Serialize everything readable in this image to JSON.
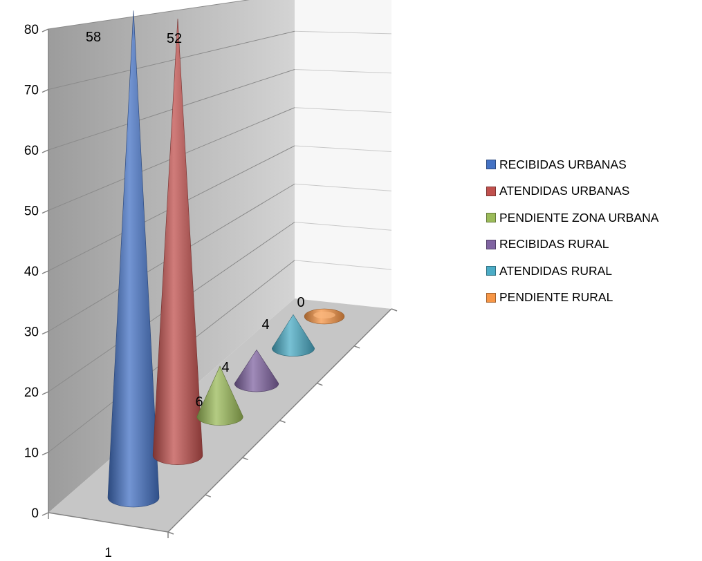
{
  "chart_data": {
    "type": "bar",
    "subtype": "3d-cone",
    "categories": [
      "1"
    ],
    "ylim": [
      0,
      80
    ],
    "y_ticks": [
      "0",
      "10",
      "20",
      "30",
      "40",
      "50",
      "60",
      "70",
      "80"
    ],
    "grid": true,
    "legend_position": "right",
    "series": [
      {
        "name": "RECIBIDAS URBANAS",
        "value": 58,
        "label": "58",
        "color": "#4472C4"
      },
      {
        "name": "ATENDIDAS URBANAS",
        "value": 52,
        "label": "52",
        "color": "#C0504D"
      },
      {
        "name": "PENDIENTE ZONA URBANA",
        "value": 6,
        "label": "6",
        "color": "#9BBB59"
      },
      {
        "name": "RECIBIDAS RURAL",
        "value": 4,
        "label": "4",
        "color": "#8064A2"
      },
      {
        "name": "ATENDIDAS RURAL",
        "value": 4,
        "label": "4",
        "color": "#4BACC6"
      },
      {
        "name": "PENDIENTE RURAL",
        "value": 0,
        "label": "0",
        "color": "#F79646"
      }
    ]
  }
}
